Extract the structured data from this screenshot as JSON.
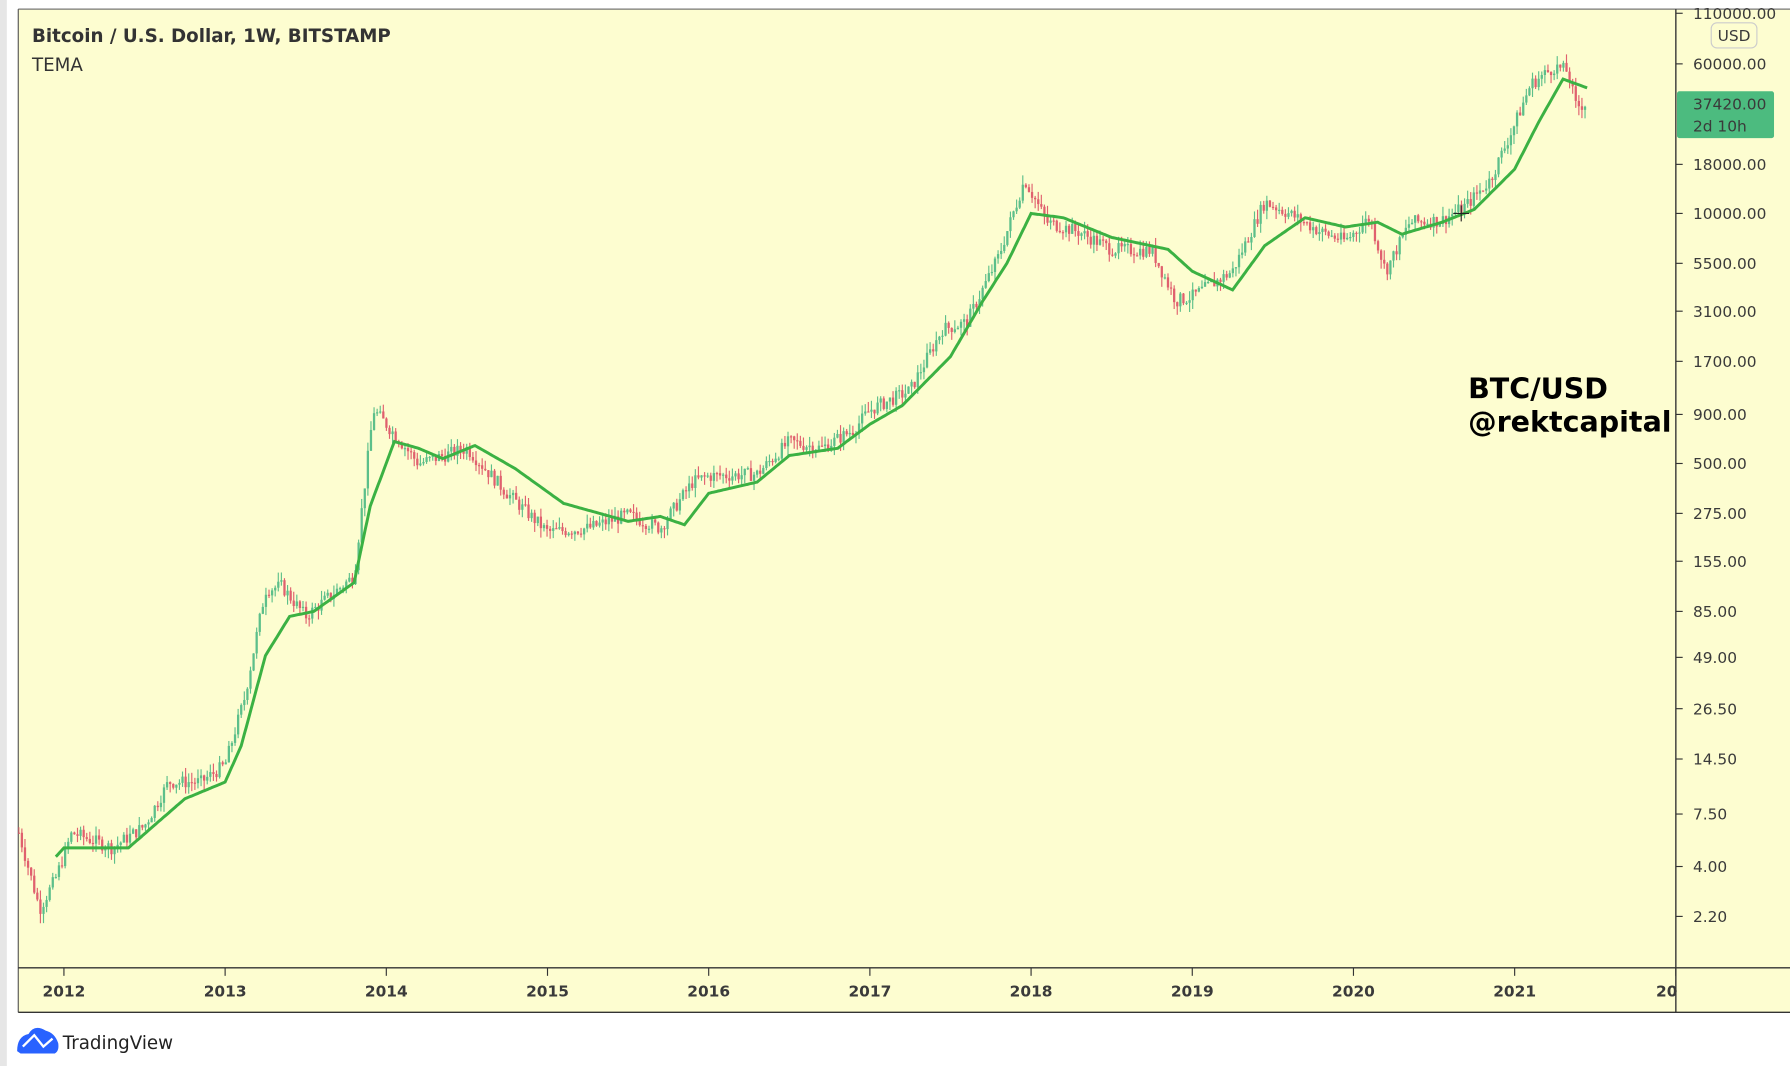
{
  "header": {
    "title": "Bitcoin / U.S. Dollar, 1W, BITSTAMP",
    "indicator": "TEMA"
  },
  "currency_badge": "USD",
  "last_price": {
    "value": "37420.00",
    "countdown": "2d 10h"
  },
  "annotation": {
    "line1": "BTC/USD",
    "line2": "@rektcapital"
  },
  "branding": "TradingView",
  "colors": {
    "background": "#fdfdd0",
    "up": "#5cbf8a",
    "down": "#e0606e",
    "tema": "#3bb143",
    "price_tag": "#4cbb7f"
  },
  "chart_data": {
    "type": "candlestick-line",
    "title": "Bitcoin / U.S. Dollar, 1W, BITSTAMP",
    "yscale": "log",
    "ylim": [
      1.6,
      120000
    ],
    "xlim": [
      2011.7,
      2021.95
    ],
    "y_ticks": [
      "110000.00",
      "60000.00",
      "18000.00",
      "10000.00",
      "5500.00",
      "3100.00",
      "1700.00",
      "900.00",
      "500.00",
      "275.00",
      "155.00",
      "85.00",
      "49.00",
      "26.50",
      "14.50",
      "7.50",
      "4.00",
      "2.20"
    ],
    "x_ticks": [
      "2012",
      "2013",
      "2014",
      "2015",
      "2016",
      "2017",
      "2018",
      "2019",
      "2020",
      "2021",
      "20"
    ],
    "price_path": [
      [
        2011.72,
        6
      ],
      [
        2011.85,
        2.4
      ],
      [
        2011.95,
        3.5
      ],
      [
        2012.05,
        6
      ],
      [
        2012.3,
        5
      ],
      [
        2012.5,
        6.5
      ],
      [
        2012.65,
        11
      ],
      [
        2012.85,
        11
      ],
      [
        2013.0,
        13.5
      ],
      [
        2013.12,
        30
      ],
      [
        2013.25,
        110
      ],
      [
        2013.35,
        115
      ],
      [
        2013.5,
        80
      ],
      [
        2013.8,
        130
      ],
      [
        2013.92,
        950
      ],
      [
        2014.0,
        800
      ],
      [
        2014.2,
        500
      ],
      [
        2014.5,
        600
      ],
      [
        2014.75,
        350
      ],
      [
        2015.0,
        220
      ],
      [
        2015.25,
        230
      ],
      [
        2015.5,
        270
      ],
      [
        2015.7,
        230
      ],
      [
        2015.9,
        400
      ],
      [
        2016.0,
        430
      ],
      [
        2016.3,
        440
      ],
      [
        2016.5,
        650
      ],
      [
        2016.7,
        600
      ],
      [
        2016.9,
        750
      ],
      [
        2017.0,
        950
      ],
      [
        2017.25,
        1200
      ],
      [
        2017.45,
        2500
      ],
      [
        2017.6,
        2700
      ],
      [
        2017.8,
        6000
      ],
      [
        2017.96,
        15000
      ],
      [
        2018.1,
        9000
      ],
      [
        2018.3,
        8000
      ],
      [
        2018.5,
        6500
      ],
      [
        2018.75,
        6400
      ],
      [
        2018.9,
        3500
      ],
      [
        2019.0,
        3700
      ],
      [
        2019.25,
        5000
      ],
      [
        2019.45,
        11500
      ],
      [
        2019.6,
        10000
      ],
      [
        2019.8,
        8000
      ],
      [
        2019.95,
        7200
      ],
      [
        2020.1,
        9500
      ],
      [
        2020.2,
        5000
      ],
      [
        2020.35,
        9000
      ],
      [
        2020.55,
        9200
      ],
      [
        2020.7,
        11000
      ],
      [
        2020.85,
        15000
      ],
      [
        2021.0,
        29000
      ],
      [
        2021.1,
        47000
      ],
      [
        2021.25,
        58000
      ],
      [
        2021.33,
        55000
      ],
      [
        2021.38,
        36000
      ],
      [
        2021.45,
        37420
      ]
    ],
    "tema": [
      [
        2011.95,
        4.5
      ],
      [
        2012.0,
        5
      ],
      [
        2012.4,
        5
      ],
      [
        2012.6,
        7
      ],
      [
        2012.75,
        9
      ],
      [
        2013.0,
        11
      ],
      [
        2013.1,
        17
      ],
      [
        2013.25,
        50
      ],
      [
        2013.4,
        80
      ],
      [
        2013.55,
        85
      ],
      [
        2013.8,
        120
      ],
      [
        2013.9,
        300
      ],
      [
        2014.05,
        650
      ],
      [
        2014.2,
        600
      ],
      [
        2014.35,
        530
      ],
      [
        2014.55,
        620
      ],
      [
        2014.8,
        470
      ],
      [
        2015.1,
        310
      ],
      [
        2015.5,
        250
      ],
      [
        2015.7,
        265
      ],
      [
        2015.85,
        240
      ],
      [
        2016.0,
        350
      ],
      [
        2016.3,
        400
      ],
      [
        2016.5,
        550
      ],
      [
        2016.8,
        600
      ],
      [
        2017.0,
        800
      ],
      [
        2017.2,
        1000
      ],
      [
        2017.5,
        1800
      ],
      [
        2017.7,
        3500
      ],
      [
        2017.85,
        5500
      ],
      [
        2018.0,
        10000
      ],
      [
        2018.2,
        9500
      ],
      [
        2018.5,
        7500
      ],
      [
        2018.85,
        6500
      ],
      [
        2019.0,
        5000
      ],
      [
        2019.25,
        4000
      ],
      [
        2019.45,
        6800
      ],
      [
        2019.7,
        9500
      ],
      [
        2019.95,
        8500
      ],
      [
        2020.15,
        9000
      ],
      [
        2020.3,
        7800
      ],
      [
        2020.55,
        9000
      ],
      [
        2020.75,
        10500
      ],
      [
        2021.0,
        17000
      ],
      [
        2021.15,
        30000
      ],
      [
        2021.3,
        50000
      ],
      [
        2021.45,
        45000
      ]
    ]
  }
}
